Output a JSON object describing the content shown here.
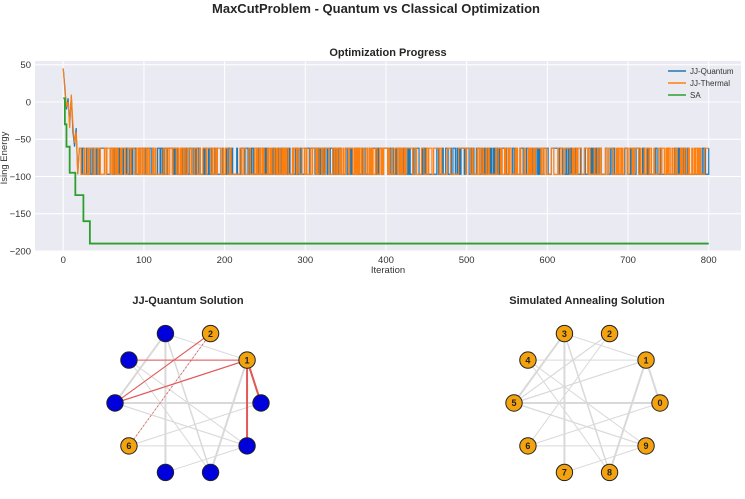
{
  "figure_title": "MaxCutProblem - Quantum vs Classical Optimization",
  "colors": {
    "jj_quantum": "#1f77b4",
    "jj_thermal": "#ff7f0e",
    "sa": "#2ca02c",
    "plot_bg": "#eaeaf2",
    "node_set_a": "#0000dd",
    "node_set_b": "#f2a30f",
    "cut_edge": "#e45756",
    "uncut_edge": "#d9d9d9"
  },
  "chart_data": [
    {
      "type": "line",
      "title": "Optimization Progress",
      "xlabel": "Iteration",
      "ylabel": "Ising Energy",
      "xlim": [
        -35,
        840
      ],
      "ylim": [
        -200,
        55
      ],
      "xticks": [
        0,
        100,
        200,
        300,
        400,
        500,
        600,
        700,
        800
      ],
      "yticks": [
        50,
        0,
        -50,
        -100,
        -150,
        -200
      ],
      "grid": true,
      "legend_position": "top-right",
      "series": [
        {
          "name": "JJ-Quantum",
          "color": "#1f77b4",
          "levels": [
            -62,
            -97
          ],
          "x": [
            0,
            2,
            4,
            6,
            8,
            10,
            12,
            14,
            16,
            18,
            20
          ],
          "y": [
            45,
            20,
            -10,
            5,
            -30,
            8,
            -40,
            -60,
            -35,
            -97,
            -62
          ]
        },
        {
          "name": "JJ-Thermal",
          "color": "#ff7f0e",
          "levels": [
            -62,
            -97
          ],
          "x": [
            0,
            2,
            4,
            6,
            8,
            10,
            12,
            14,
            16,
            18,
            20
          ],
          "y": [
            45,
            15,
            -5,
            0,
            -35,
            10,
            -30,
            -55,
            -40,
            -97,
            -62
          ]
        },
        {
          "name": "SA",
          "color": "#2ca02c",
          "x": [
            0,
            2,
            4,
            6,
            8,
            9,
            10,
            14,
            15,
            20,
            24,
            25,
            30,
            33,
            800
          ],
          "y": [
            5,
            -30,
            -60,
            -60,
            -95,
            -95,
            -95,
            -95,
            -125,
            -125,
            -125,
            -160,
            -160,
            -190,
            -190
          ]
        }
      ]
    },
    {
      "type": "graph",
      "title": "JJ-Quantum Solution",
      "node_labels": [
        "",
        "1",
        "2",
        "",
        "",
        "",
        "6",
        "",
        "",
        ""
      ]
    },
    {
      "type": "graph",
      "title": "Simulated Annealing Solution",
      "node_labels": [
        "0",
        "1",
        "2",
        "3",
        "4",
        "5",
        "6",
        "7",
        "8",
        "9"
      ]
    }
  ]
}
